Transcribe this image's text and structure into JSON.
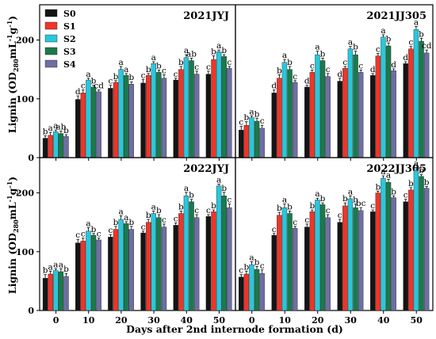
{
  "figure": {
    "ylabel": "Lignin (OD280mL-1g-1)",
    "xlabel": "Days after 2nd internode formation (d)"
  },
  "legend": [
    "S0",
    "S1",
    "S2",
    "S3",
    "S4"
  ],
  "colors": [
    "#141414",
    "#f03428",
    "#28c8dc",
    "#1a7a4c",
    "#6e6ea4"
  ],
  "chart_data": [
    {
      "type": "bar",
      "title": "2021JYJ",
      "categories": [
        "0",
        "10",
        "20",
        "30",
        "40",
        "50"
      ],
      "ylim": [
        0,
        260
      ],
      "yticks": [
        0,
        100,
        200
      ],
      "series": [
        {
          "name": "S0",
          "values": [
            33,
            99,
            118,
            127,
            132,
            142
          ]
        },
        {
          "name": "S1",
          "values": [
            38,
            110,
            128,
            140,
            150,
            167
          ]
        },
        {
          "name": "S2",
          "values": [
            44,
            132,
            150,
            160,
            170,
            180
          ]
        },
        {
          "name": "S3",
          "values": [
            41,
            120,
            140,
            145,
            165,
            172
          ]
        },
        {
          "name": "S4",
          "values": [
            36,
            112,
            125,
            135,
            142,
            152
          ]
        }
      ],
      "labels": [
        [
          "b",
          "a",
          "a",
          "ab",
          "b"
        ],
        [
          "d",
          "c",
          "a",
          "b",
          "cd"
        ],
        [
          "c",
          "b",
          "a",
          "a",
          "b"
        ],
        [
          "c",
          "b",
          "a",
          "b",
          "c"
        ],
        [
          "c",
          "b",
          "a",
          "ab",
          "c"
        ],
        [
          "c",
          "b",
          "a",
          "b",
          "c"
        ]
      ]
    },
    {
      "type": "bar",
      "title": "2021JJ305",
      "categories": [
        "0",
        "10",
        "20",
        "30",
        "40",
        "50"
      ],
      "ylim": [
        0,
        260
      ],
      "yticks": [
        0,
        100,
        200
      ],
      "series": [
        {
          "name": "S0",
          "values": [
            47,
            110,
            120,
            130,
            140,
            160
          ]
        },
        {
          "name": "S1",
          "values": [
            55,
            135,
            145,
            152,
            173,
            185
          ]
        },
        {
          "name": "S2",
          "values": [
            68,
            162,
            175,
            185,
            205,
            218
          ]
        },
        {
          "name": "S3",
          "values": [
            62,
            150,
            165,
            175,
            190,
            198
          ]
        },
        {
          "name": "S4",
          "values": [
            50,
            128,
            138,
            145,
            148,
            178
          ]
        }
      ],
      "labels": [
        [
          "c",
          "b",
          "a",
          "b",
          "c"
        ],
        [
          "d",
          "b",
          "a",
          "b",
          "c"
        ],
        [
          "d",
          "c",
          "a",
          "b",
          "c"
        ],
        [
          "d",
          "c",
          "a",
          "b",
          "c"
        ],
        [
          "d",
          "c",
          "a",
          "b",
          "d"
        ],
        [
          "d",
          "c",
          "a",
          "b",
          "cd"
        ]
      ]
    },
    {
      "type": "bar",
      "title": "2022JYJ",
      "categories": [
        "0",
        "10",
        "20",
        "30",
        "40",
        "50"
      ],
      "ylim": [
        0,
        260
      ],
      "yticks": [
        0,
        100,
        200
      ],
      "series": [
        {
          "name": "S0",
          "values": [
            55,
            115,
            125,
            132,
            145,
            160
          ]
        },
        {
          "name": "S1",
          "values": [
            62,
            118,
            138,
            150,
            165,
            168
          ]
        },
        {
          "name": "S2",
          "values": [
            68,
            135,
            155,
            165,
            195,
            212
          ]
        },
        {
          "name": "S3",
          "values": [
            66,
            128,
            148,
            158,
            185,
            195
          ]
        },
        {
          "name": "S4",
          "values": [
            58,
            120,
            138,
            142,
            158,
            175
          ]
        }
      ],
      "labels": [
        [
          "b",
          "a",
          "a",
          "a",
          "b"
        ],
        [
          "c",
          "c",
          "a",
          "b",
          "c"
        ],
        [
          "c",
          "b",
          "a",
          "a",
          "b"
        ],
        [
          "c",
          "b",
          "a",
          "b",
          "c"
        ],
        [
          "c",
          "b",
          "a",
          "b",
          "c"
        ],
        [
          "c",
          "b",
          "a",
          "b",
          "c"
        ]
      ]
    },
    {
      "type": "bar",
      "title": "2022JJ305",
      "categories": [
        "0",
        "10",
        "20",
        "30",
        "40",
        "50"
      ],
      "ylim": [
        0,
        260
      ],
      "yticks": [
        0,
        100,
        200
      ],
      "series": [
        {
          "name": "S0",
          "values": [
            57,
            128,
            142,
            150,
            168,
            185
          ]
        },
        {
          "name": "S1",
          "values": [
            62,
            162,
            168,
            178,
            200,
            205
          ]
        },
        {
          "name": "S2",
          "values": [
            78,
            175,
            188,
            190,
            225,
            238
          ]
        },
        {
          "name": "S3",
          "values": [
            70,
            165,
            180,
            175,
            218,
            228
          ]
        },
        {
          "name": "S4",
          "values": [
            63,
            140,
            158,
            170,
            192,
            208
          ]
        }
      ],
      "labels": [
        [
          "c",
          "b",
          "a",
          "b",
          "c"
        ],
        [
          "c",
          "b",
          "a",
          "b",
          "c"
        ],
        [
          "c",
          "b",
          "a",
          "b",
          "c"
        ],
        [
          "c",
          "b",
          "a",
          "b",
          "bc"
        ],
        [
          "c",
          "b",
          "a",
          "a",
          "b"
        ],
        [
          "c",
          "b",
          "a",
          "b",
          "b"
        ]
      ]
    }
  ]
}
